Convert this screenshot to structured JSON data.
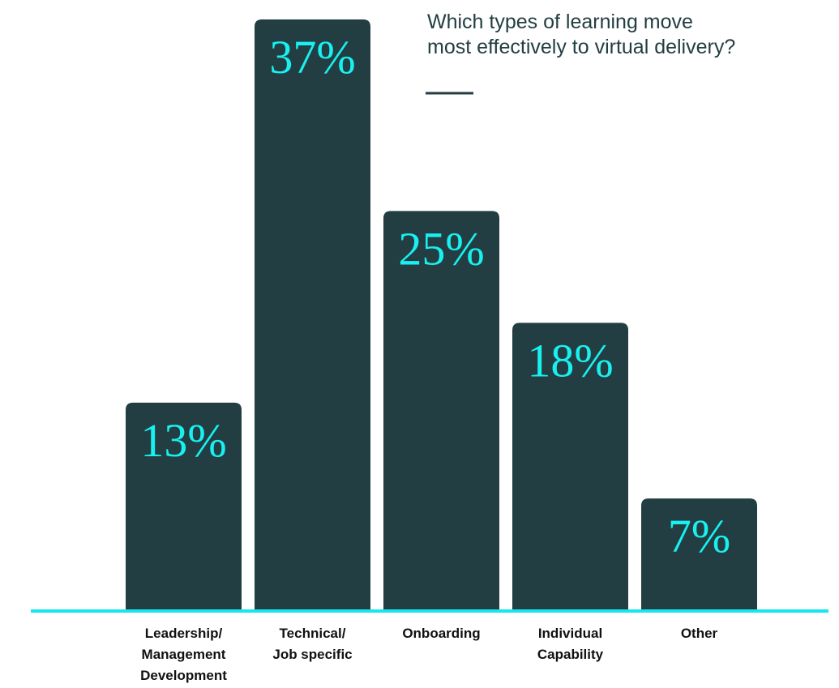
{
  "chart_data": {
    "type": "bar",
    "title": "Which types of learning move\nmost effectively to virtual delivery?",
    "categories": [
      "Leadership/\nManagement\nDevelopment",
      "Technical/\nJob specific",
      "Onboarding",
      "Individual\nCapability",
      "Other"
    ],
    "values": [
      13,
      37,
      25,
      18,
      7
    ],
    "value_labels": [
      "13%",
      "37%",
      "25%",
      "18%",
      "7%"
    ],
    "color": "#233e42"
  }
}
